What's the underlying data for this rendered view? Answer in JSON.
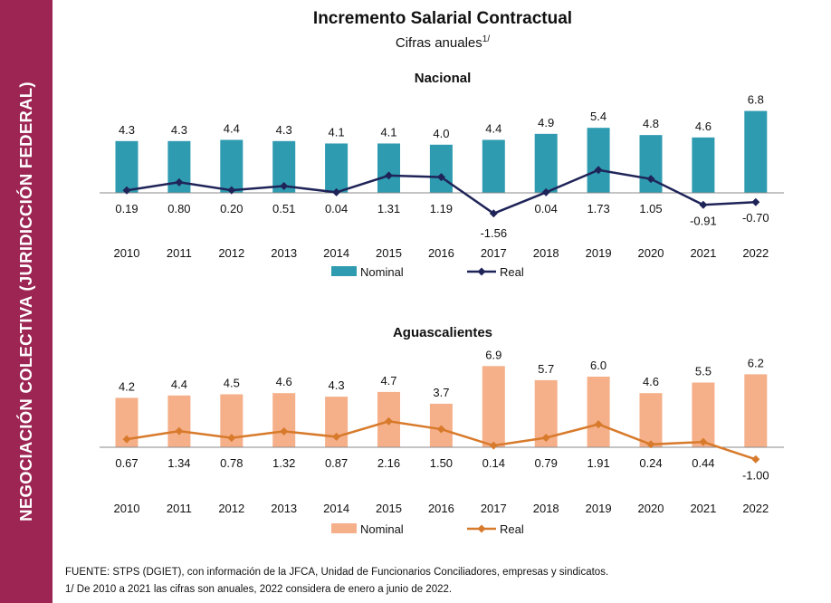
{
  "sidebar": {
    "label": "NEGOCIACIÓN COLECTIVA (JURIDICCIÓN FEDERAL)"
  },
  "title": "Incremento Salarial Contractual",
  "subtitle": "Cifras anuales",
  "subtitle_note": "1/",
  "colors": {
    "sidebar": "#9c2553",
    "nacional_bar": "#2e9bb0",
    "nacional_line": "#1f2458",
    "ags_bar": "#f5b08a",
    "ags_line": "#d87a2b"
  },
  "chart_data": [
    {
      "type": "bar",
      "title": "Nacional",
      "categories": [
        "2010",
        "2011",
        "2012",
        "2013",
        "2014",
        "2015",
        "2016",
        "2017",
        "2018",
        "2019",
        "2020",
        "2021",
        "2022"
      ],
      "series": [
        {
          "name": "Nominal",
          "type": "bar",
          "values": [
            4.3,
            4.3,
            4.4,
            4.3,
            4.1,
            4.1,
            4.0,
            4.4,
            4.9,
            5.4,
            4.8,
            4.6,
            6.8
          ]
        },
        {
          "name": "Real",
          "type": "line",
          "marker": "diamond",
          "values": [
            0.19,
            0.8,
            0.2,
            0.51,
            0.04,
            1.31,
            1.19,
            -1.56,
            0.04,
            1.73,
            1.05,
            -0.91,
            -0.7
          ]
        }
      ],
      "value_labels": {
        "nominal": [
          "4.3",
          "4.3",
          "4.4",
          "4.3",
          "4.1",
          "4.1",
          "4.0",
          "4.4",
          "4.9",
          "5.4",
          "4.8",
          "4.6",
          "6.8"
        ],
        "real": [
          "0.19",
          "0.80",
          "0.20",
          "0.51",
          "0.04",
          "1.31",
          "1.19",
          "-1.56",
          "0.04",
          "1.73",
          "1.05",
          "-0.91",
          "-0.70"
        ]
      },
      "legend": {
        "placement": "bottom",
        "labels": [
          "Nominal",
          "Real"
        ]
      }
    },
    {
      "type": "bar",
      "title": "Aguascalientes",
      "categories": [
        "2010",
        "2011",
        "2012",
        "2013",
        "2014",
        "2015",
        "2016",
        "2017",
        "2018",
        "2019",
        "2020",
        "2021",
        "2022"
      ],
      "series": [
        {
          "name": "Nominal",
          "type": "bar",
          "values": [
            4.2,
            4.4,
            4.5,
            4.6,
            4.3,
            4.7,
            3.7,
            6.9,
            5.7,
            6.0,
            4.6,
            5.5,
            6.2
          ]
        },
        {
          "name": "Real",
          "type": "line",
          "marker": "diamond",
          "values": [
            0.67,
            1.34,
            0.78,
            1.32,
            0.87,
            2.16,
            1.5,
            0.14,
            0.79,
            1.91,
            0.24,
            0.44,
            -1.0
          ]
        }
      ],
      "value_labels": {
        "nominal": [
          "4.2",
          "4.4",
          "4.5",
          "4.6",
          "4.3",
          "4.7",
          "3.7",
          "6.9",
          "5.7",
          "6.0",
          "4.6",
          "5.5",
          "6.2"
        ],
        "real": [
          "0.67",
          "1.34",
          "0.78",
          "1.32",
          "0.87",
          "2.16",
          "1.50",
          "0.14",
          "0.79",
          "1.91",
          "0.24",
          "0.44",
          "-1.00"
        ]
      },
      "legend": {
        "placement": "bottom",
        "labels": [
          "Nominal",
          "Real"
        ]
      }
    }
  ],
  "footnotes": {
    "source": "FUENTE: STPS (DGIET),  con información de la JFCA, Unidad de Funcionarios Conciliadores, empresas y sindicatos.",
    "note": "1/ De 2010 a 2021 las cifras son anuales, 2022 considera de enero a junio de 2022."
  }
}
